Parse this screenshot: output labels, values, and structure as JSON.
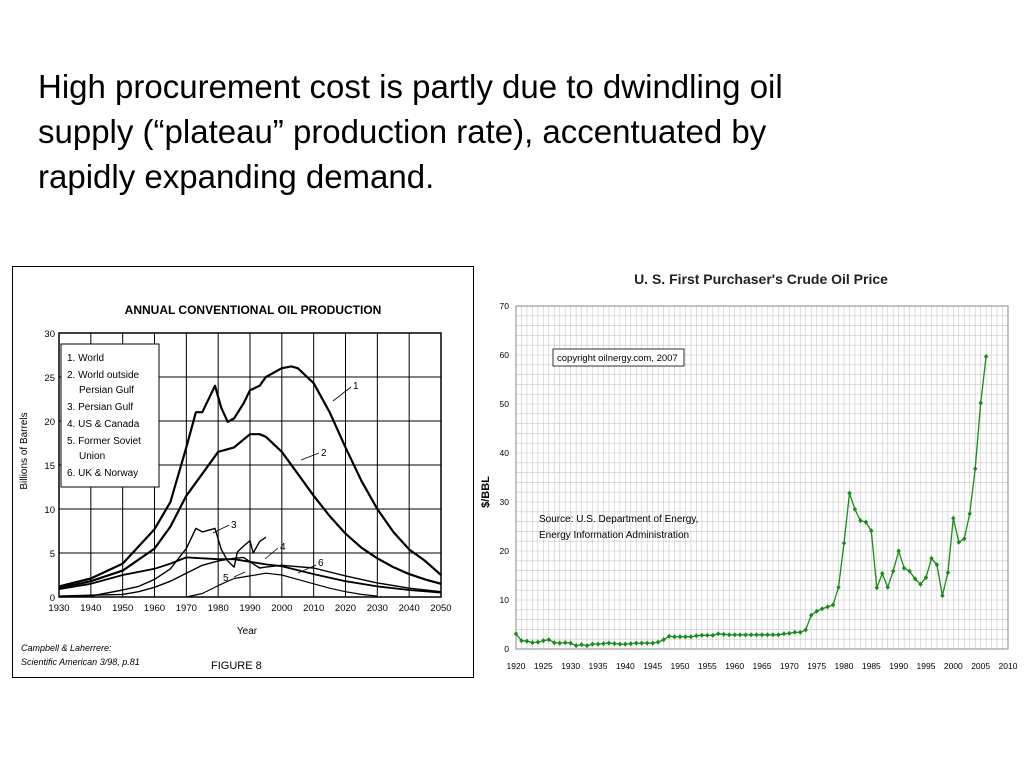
{
  "slide": {
    "lines": [
      "High procurement cost is partly due to dwindling oil",
      "supply (“plateau” production rate), accentuated by",
      "rapidly expanding demand."
    ]
  },
  "colors": {
    "oil_price_series": "#1a8a1a",
    "gridline": "#c8c8c8"
  },
  "chart_data": [
    {
      "type": "line",
      "title": "ANNUAL CONVENTIONAL OIL PRODUCTION",
      "xlabel": "Year",
      "ylabel": "Billions of Barrels",
      "xlim": [
        1930,
        2050
      ],
      "ylim": [
        0,
        30
      ],
      "x_ticks": [
        "1930",
        "1940",
        "1950",
        "1960",
        "1970",
        "1980",
        "1990",
        "2000",
        "2010",
        "2020",
        "2030",
        "2040",
        "2050"
      ],
      "y_ticks": [
        "0",
        "5",
        "10",
        "15",
        "20",
        "25",
        "30"
      ],
      "grid": true,
      "legend_position": "top-left",
      "legend": [
        "1. World",
        "2. World outside",
        "Persian Gulf",
        "3. Persian Gulf",
        "4. US & Canada",
        "5. Former Soviet",
        "Union",
        "6. UK & Norway"
      ],
      "curve_labels": [
        "1",
        "2",
        "3",
        "4",
        "5",
        "6"
      ],
      "footnote": [
        "Campbell & Laherrere:",
        "Scientific American 3/98, p.81"
      ],
      "figure_label": "FIGURE 8",
      "series": [
        {
          "name": "1",
          "x": [
            1930,
            1940,
            1950,
            1960,
            1965,
            1970,
            1973,
            1975,
            1979,
            1981,
            1983,
            1985,
            1988,
            1990,
            1993,
            1995,
            2000,
            2003,
            2005,
            2010,
            2015,
            2020,
            2025,
            2030,
            2035,
            2040,
            2045,
            2050
          ],
          "y": [
            1.2,
            2.1,
            3.8,
            7.7,
            10.8,
            17.0,
            21.0,
            21.0,
            24.0,
            21.5,
            19.9,
            20.3,
            22.0,
            23.5,
            24.0,
            25.0,
            26.0,
            26.2,
            26.0,
            24.3,
            21.0,
            17.0,
            13.2,
            10.0,
            7.4,
            5.4,
            4.1,
            2.5
          ]
        },
        {
          "name": "2",
          "x": [
            1930,
            1940,
            1950,
            1960,
            1965,
            1970,
            1975,
            1980,
            1985,
            1990,
            1993,
            1995,
            2000,
            2005,
            2010,
            2015,
            2020,
            2025,
            2030,
            2035,
            2040,
            2045,
            2050
          ],
          "y": [
            1.0,
            1.8,
            3.0,
            5.5,
            8.0,
            11.5,
            14.0,
            16.5,
            17.0,
            18.5,
            18.5,
            18.2,
            16.5,
            14.0,
            11.5,
            9.2,
            7.2,
            5.6,
            4.4,
            3.4,
            2.6,
            2.0,
            1.5
          ]
        },
        {
          "name": "3",
          "x": [
            1930,
            1940,
            1950,
            1955,
            1960,
            1965,
            1970,
            1973,
            1975,
            1979,
            1981,
            1983,
            1985,
            1986,
            1988,
            1990,
            1991,
            1993,
            1995
          ],
          "y": [
            0,
            0.1,
            0.8,
            1.2,
            2.0,
            3.2,
            5.5,
            7.8,
            7.4,
            7.8,
            5.4,
            4.1,
            3.4,
            5.1,
            5.8,
            6.4,
            5.0,
            6.3,
            6.8
          ]
        },
        {
          "name": "4",
          "x": [
            1930,
            1940,
            1950,
            1960,
            1965,
            1970,
            1975,
            1980,
            1985,
            1990,
            1995,
            2000,
            2010,
            2020,
            2030,
            2040,
            2050
          ],
          "y": [
            0.9,
            1.5,
            2.5,
            3.2,
            3.8,
            4.5,
            4.4,
            4.3,
            4.3,
            4.0,
            3.7,
            3.5,
            2.6,
            1.8,
            1.2,
            0.8,
            0.5
          ]
        },
        {
          "name": "5",
          "x": [
            1930,
            1940,
            1950,
            1955,
            1960,
            1965,
            1970,
            1975,
            1980,
            1985,
            1988,
            1990,
            1993,
            1995,
            2000,
            2010,
            2020,
            2030,
            2040,
            2050
          ],
          "y": [
            0.1,
            0.2,
            0.3,
            0.6,
            1.1,
            1.8,
            2.7,
            3.6,
            4.1,
            4.4,
            4.5,
            4.0,
            3.3,
            3.4,
            3.6,
            3.3,
            2.4,
            1.6,
            1.0,
            0.6
          ]
        },
        {
          "name": "6",
          "x": [
            1970,
            1975,
            1980,
            1985,
            1990,
            1995,
            2000,
            2005,
            2010,
            2015,
            2020,
            2025,
            2030
          ],
          "y": [
            0,
            0.4,
            1.3,
            2.1,
            2.4,
            2.7,
            2.5,
            2.0,
            1.5,
            1.0,
            0.6,
            0.3,
            0.1
          ]
        }
      ]
    },
    {
      "type": "line",
      "title": "U. S. First Purchaser's Crude Oil Price",
      "ylabel": "$/BBL",
      "xlim": [
        1920,
        2010
      ],
      "ylim": [
        0,
        70
      ],
      "x_ticks": [
        "1920",
        "1925",
        "1930",
        "1935",
        "1940",
        "1945",
        "1950",
        "1955",
        "1960",
        "1965",
        "1970",
        "1975",
        "1980",
        "1985",
        "1990",
        "1995",
        "2000",
        "2005",
        "2010"
      ],
      "y_ticks": [
        "0",
        "10",
        "20",
        "30",
        "40",
        "50",
        "60",
        "70"
      ],
      "grid": true,
      "annotations": {
        "copyright": "copyright oilnergy.com, 2007",
        "source": [
          "Source: U.S. Department of Energy,",
          "Energy Information Administration"
        ]
      },
      "x": [
        1920,
        1921,
        1922,
        1923,
        1924,
        1925,
        1926,
        1927,
        1928,
        1929,
        1930,
        1931,
        1932,
        1933,
        1934,
        1935,
        1936,
        1937,
        1938,
        1939,
        1940,
        1941,
        1942,
        1943,
        1944,
        1945,
        1946,
        1947,
        1948,
        1949,
        1950,
        1951,
        1952,
        1953,
        1954,
        1955,
        1956,
        1957,
        1958,
        1959,
        1960,
        1961,
        1962,
        1963,
        1964,
        1965,
        1966,
        1967,
        1968,
        1969,
        1970,
        1971,
        1972,
        1973,
        1974,
        1975,
        1976,
        1977,
        1978,
        1979,
        1980,
        1981,
        1982,
        1983,
        1984,
        1985,
        1986,
        1987,
        1988,
        1989,
        1990,
        1991,
        1992,
        1993,
        1994,
        1995,
        1996,
        1997,
        1998,
        1999,
        2000,
        2001,
        2002,
        2003,
        2004,
        2005,
        2006
      ],
      "y": [
        3.1,
        1.7,
        1.6,
        1.3,
        1.4,
        1.7,
        1.9,
        1.3,
        1.2,
        1.3,
        1.2,
        0.7,
        0.9,
        0.7,
        1.0,
        1.0,
        1.1,
        1.2,
        1.1,
        1.0,
        1.0,
        1.1,
        1.2,
        1.2,
        1.2,
        1.2,
        1.4,
        1.9,
        2.6,
        2.5,
        2.5,
        2.5,
        2.5,
        2.7,
        2.8,
        2.8,
        2.8,
        3.1,
        3.0,
        2.9,
        2.9,
        2.9,
        2.9,
        2.9,
        2.9,
        2.9,
        2.9,
        2.9,
        2.9,
        3.1,
        3.2,
        3.4,
        3.4,
        3.9,
        6.9,
        7.7,
        8.2,
        8.6,
        9.0,
        12.6,
        21.6,
        31.8,
        28.5,
        26.2,
        25.9,
        24.1,
        12.5,
        15.4,
        12.6,
        15.9,
        20.0,
        16.5,
        15.9,
        14.3,
        13.2,
        14.6,
        18.5,
        17.2,
        10.9,
        15.6,
        26.7,
        21.8,
        22.5,
        27.6,
        36.8,
        50.2,
        59.7
      ]
    }
  ]
}
